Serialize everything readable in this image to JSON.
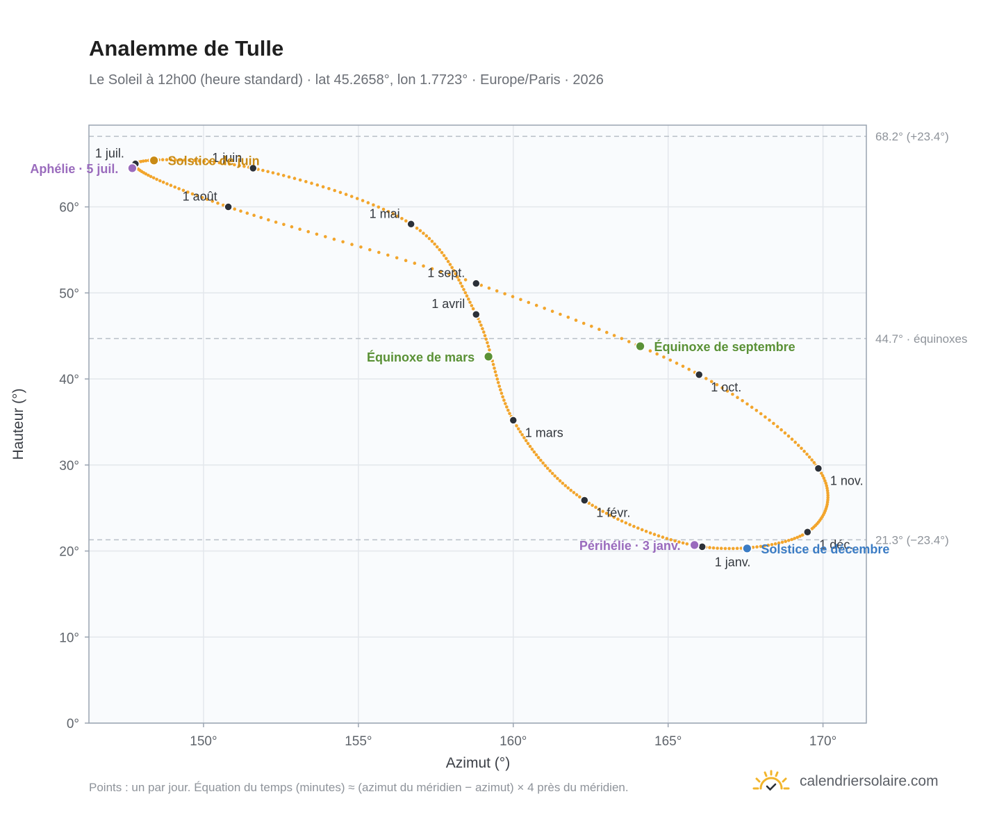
{
  "header": {
    "title": "Analemme de Tulle",
    "subtitle": "Le Soleil à 12h00 (heure standard) · lat 45.2658°, lon 1.7723° · Europe/Paris · 2026"
  },
  "footer": {
    "note": "Points : un par jour. Équation du temps (minutes) ≈ (azimut du méridien − azimut) × 4 près du méridien.",
    "brand": "calendriersolaire.com",
    "brand_icon": "sun-icon"
  },
  "colors": {
    "curve": "#f2a52c",
    "month_marker": "#2b3038",
    "solstice_june": "#c98a14",
    "solstice_december": "#3b7cc4",
    "equinox": "#5a9136",
    "apsis": "#9a6bbd",
    "plot_background": "#f9fbfd",
    "grid": "#e3e7ec",
    "reference_line": "#b9c0c8"
  },
  "chart_data": {
    "type": "scatter",
    "title": "Analemme de Tulle",
    "xlabel": "Azimut (°)",
    "ylabel": "Hauteur (°)",
    "xlim": [
      146.3,
      171.4
    ],
    "ylim": [
      0,
      69.5
    ],
    "x_ticks": [
      150,
      155,
      160,
      165,
      170
    ],
    "x_tick_labels": [
      "150°",
      "155°",
      "160°",
      "165°",
      "170°"
    ],
    "y_ticks": [
      0,
      10,
      20,
      30,
      40,
      50,
      60
    ],
    "y_tick_labels": [
      "0°",
      "10°",
      "20°",
      "30°",
      "40°",
      "50°",
      "60°"
    ],
    "grid": true,
    "series": [
      {
        "role": "daily_points",
        "marker": "dot",
        "anchors": [
          [
            166.1,
            20.5
          ],
          [
            162.3,
            25.9
          ],
          [
            160.0,
            35.2
          ],
          [
            158.8,
            47.5
          ],
          [
            156.7,
            58.0
          ],
          [
            151.6,
            64.5
          ],
          [
            147.8,
            65.0
          ],
          [
            150.8,
            60.0
          ],
          [
            158.8,
            51.1
          ],
          [
            166.0,
            40.5
          ],
          [
            169.85,
            29.6
          ],
          [
            169.5,
            22.2
          ],
          [
            166.1,
            20.5
          ]
        ]
      }
    ],
    "month_markers": [
      {
        "label": "1 janv.",
        "x": 166.1,
        "y": 20.5,
        "label_pos": "below"
      },
      {
        "label": "1 févr.",
        "x": 162.3,
        "y": 25.9,
        "label_pos": "below-right"
      },
      {
        "label": "1 mars",
        "x": 160.0,
        "y": 35.2,
        "label_pos": "below-right"
      },
      {
        "label": "1 avril",
        "x": 158.8,
        "y": 47.5,
        "label_pos": "above-left"
      },
      {
        "label": "1 mai",
        "x": 156.7,
        "y": 58.0,
        "label_pos": "above-left"
      },
      {
        "label": "1 juin",
        "x": 151.6,
        "y": 64.5,
        "label_pos": "above-left"
      },
      {
        "label": "1 juil.",
        "x": 147.8,
        "y": 65.0,
        "label_pos": "above-left"
      },
      {
        "label": "1 août",
        "x": 150.8,
        "y": 60.0,
        "label_pos": "above-left"
      },
      {
        "label": "1 sept.",
        "x": 158.8,
        "y": 51.1,
        "label_pos": "above-left"
      },
      {
        "label": "1 oct.",
        "x": 166.0,
        "y": 40.5,
        "label_pos": "below-right"
      },
      {
        "label": "1 nov.",
        "x": 169.85,
        "y": 29.6,
        "label_pos": "below-right"
      },
      {
        "label": "1 déc.",
        "x": 169.5,
        "y": 22.2,
        "label_pos": "below-right"
      }
    ],
    "events": [
      {
        "label": "Solstice de juin",
        "x": 148.4,
        "y": 65.4,
        "color_key": "solstice_june",
        "label_side": "right"
      },
      {
        "label": "Aphélie · 5 juil.",
        "x": 147.7,
        "y": 64.5,
        "color_key": "apsis",
        "label_side": "left"
      },
      {
        "label": "Équinoxe de mars",
        "x": 159.2,
        "y": 42.6,
        "color_key": "equinox",
        "label_side": "left"
      },
      {
        "label": "Équinoxe de septembre",
        "x": 164.1,
        "y": 43.8,
        "color_key": "equinox",
        "label_side": "right"
      },
      {
        "label": "Périhélie · 3 janv.",
        "x": 165.85,
        "y": 20.7,
        "color_key": "apsis",
        "label_side": "left"
      },
      {
        "label": "Solstice de décembre",
        "x": 167.55,
        "y": 20.3,
        "color_key": "solstice_december",
        "label_side": "right"
      }
    ],
    "reference_lines": [
      {
        "y": 68.2,
        "label": "68.2° (+23.4°)"
      },
      {
        "y": 44.7,
        "label": "44.7° · équinoxes"
      },
      {
        "y": 21.3,
        "label": "21.3° (−23.4°)"
      }
    ]
  }
}
